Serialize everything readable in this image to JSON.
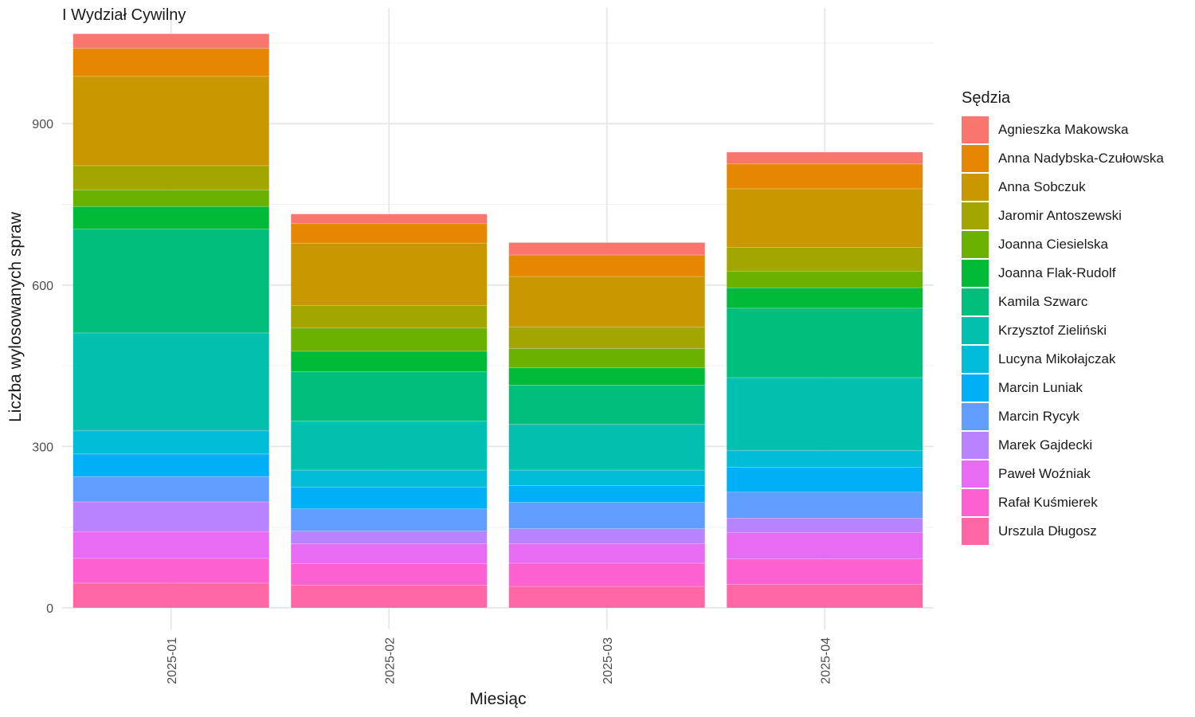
{
  "chart_data": {
    "type": "bar",
    "stacked": true,
    "title": "I Wydział Cywilny",
    "xlabel": "Miesiąc",
    "ylabel": "Liczba wylosowanych spraw",
    "categories": [
      "2025-01",
      "2025-02",
      "2025-03",
      "2025-04"
    ],
    "ylim": [
      -40,
      1115
    ],
    "yticks": [
      0,
      300,
      600,
      900
    ],
    "grid": true,
    "legend_title": "Sędzia",
    "legend_position": "right",
    "series": [
      {
        "name": "Agnieszka Makowska",
        "color": "#F8766D",
        "values": [
          27,
          18,
          23,
          22
        ]
      },
      {
        "name": "Anna Nadybska-Czułowska",
        "color": "#E58700",
        "values": [
          52,
          36,
          40,
          46
        ]
      },
      {
        "name": "Anna Sobczuk",
        "color": "#C99800",
        "values": [
          166,
          116,
          94,
          109
        ]
      },
      {
        "name": "Jaromir Antoszewski",
        "color": "#A3A500",
        "values": [
          45,
          42,
          40,
          44
        ]
      },
      {
        "name": "Joanna Ciesielska",
        "color": "#6BB100",
        "values": [
          31,
          43,
          36,
          31
        ]
      },
      {
        "name": "Joanna Flak-Rudolf",
        "color": "#00BA38",
        "values": [
          42,
          38,
          32,
          38
        ]
      },
      {
        "name": "Kamila Szwarc",
        "color": "#00BF7D",
        "values": [
          193,
          92,
          73,
          129
        ]
      },
      {
        "name": "Krzysztof Zieliński",
        "color": "#00C0AF",
        "values": [
          182,
          91,
          85,
          136
        ]
      },
      {
        "name": "Lucyna Mikołajczak",
        "color": "#00BCD8",
        "values": [
          43,
          32,
          29,
          31
        ]
      },
      {
        "name": "Marcin Luniak",
        "color": "#00B0F6",
        "values": [
          42,
          40,
          31,
          46
        ]
      },
      {
        "name": "Marcin Rycyk",
        "color": "#619CFF",
        "values": [
          47,
          41,
          49,
          48
        ]
      },
      {
        "name": "Marek Gajdecki",
        "color": "#B983FF",
        "values": [
          56,
          24,
          28,
          27
        ]
      },
      {
        "name": "Paweł Woźniak",
        "color": "#E76BF3",
        "values": [
          49,
          37,
          36,
          49
        ]
      },
      {
        "name": "Rafał Kuśmierek",
        "color": "#FD61D1",
        "values": [
          46,
          40,
          43,
          47
        ]
      },
      {
        "name": "Urszula Długosz",
        "color": "#FF67A4",
        "values": [
          46,
          42,
          40,
          44
        ]
      }
    ]
  }
}
